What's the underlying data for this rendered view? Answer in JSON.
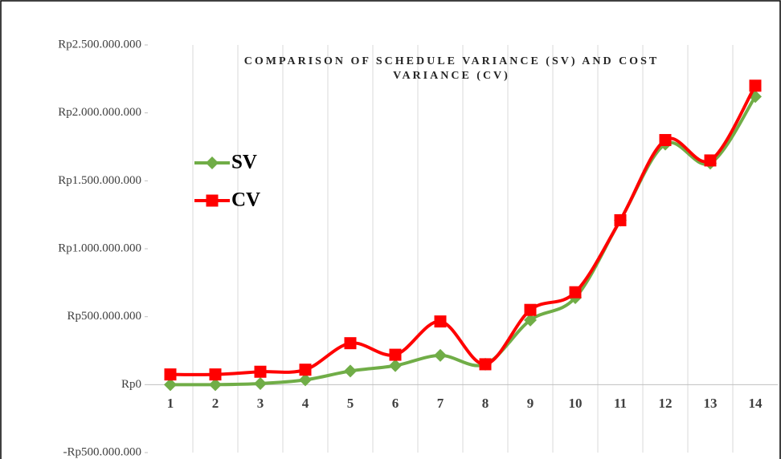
{
  "chart_data": {
    "type": "line",
    "title": [
      "COMPARISON OF SCHEDULE VARIANCE (SV) AND COST",
      "VARIANCE (CV)"
    ],
    "categories": [
      "1",
      "2",
      "3",
      "4",
      "5",
      "6",
      "7",
      "8",
      "9",
      "10",
      "11",
      "12",
      "13",
      "14"
    ],
    "series": [
      {
        "name": "SV",
        "color": "#70ad47",
        "marker": "diamond",
        "values": [
          0,
          0,
          8000000,
          35000000,
          100000000,
          140000000,
          215000000,
          150000000,
          475000000,
          640000000,
          1210000000,
          1770000000,
          1630000000,
          2120000000
        ]
      },
      {
        "name": "CV",
        "color": "#ff0000",
        "marker": "square",
        "values": [
          75000000,
          75000000,
          95000000,
          110000000,
          305000000,
          220000000,
          465000000,
          150000000,
          550000000,
          680000000,
          1210000000,
          1800000000,
          1650000000,
          2200000000
        ]
      }
    ],
    "ylim": [
      -500000000,
      2500000000
    ],
    "yticks": [
      {
        "value": -500000000,
        "label": "-Rp500.000.000"
      },
      {
        "value": 0,
        "label": "Rp0"
      },
      {
        "value": 500000000,
        "label": "Rp500.000.000"
      },
      {
        "value": 1000000000,
        "label": "Rp1.000.000.000"
      },
      {
        "value": 1500000000,
        "label": "Rp1.500.000.000"
      },
      {
        "value": 2000000000,
        "label": "Rp2.000.000.000"
      },
      {
        "value": 2500000000,
        "label": "Rp2.500.000.000"
      }
    ],
    "smooth": true,
    "legend": "upper left"
  }
}
